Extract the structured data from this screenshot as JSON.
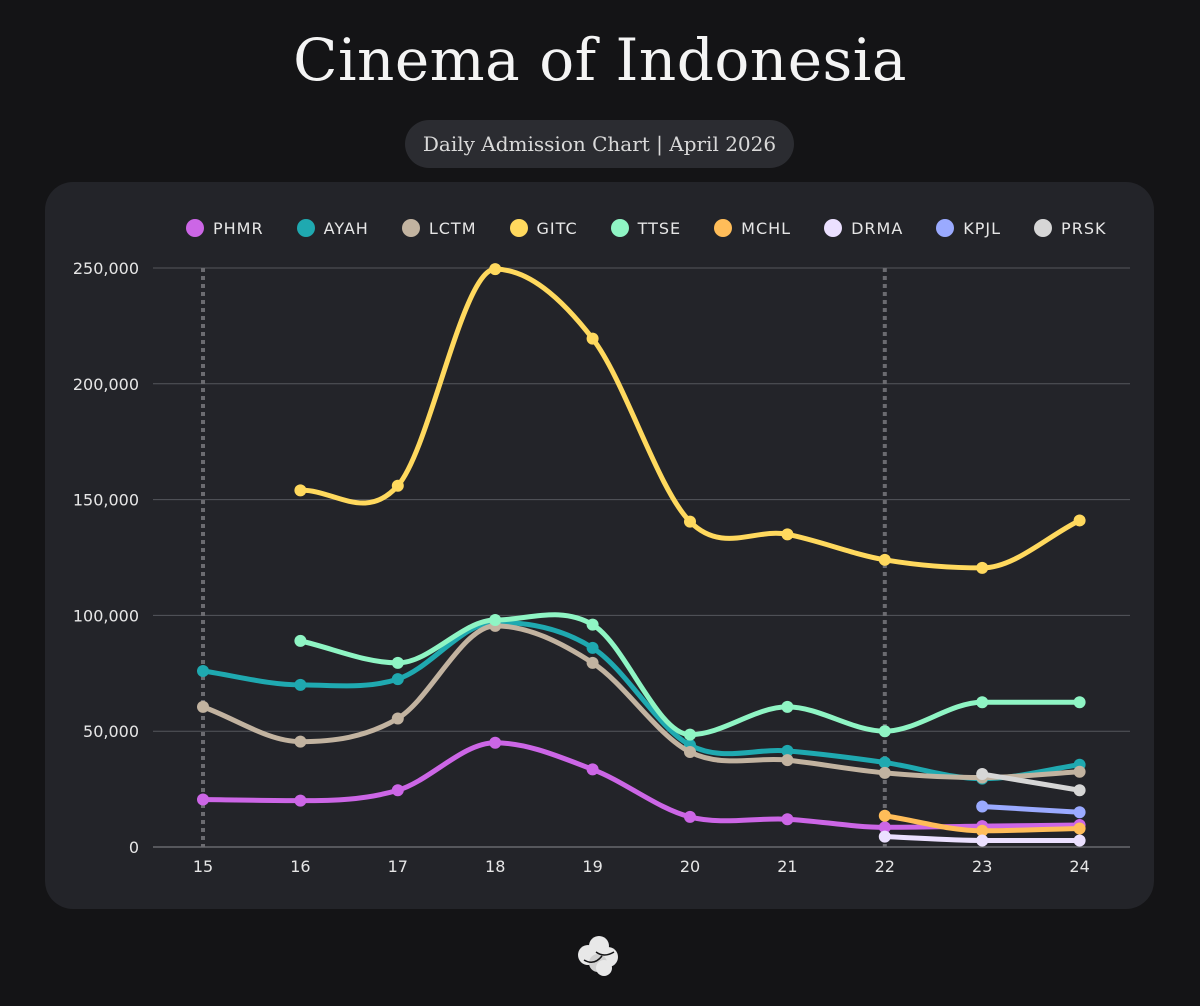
{
  "title": "Cinema of Indonesia",
  "subtitle": "Daily Admission Chart | April 2026",
  "chart_data": {
    "type": "line",
    "title": "Cinema of Indonesia",
    "subtitle": "Daily Admission Chart | April 2026",
    "xlabel": "",
    "ylabel": "",
    "x": [
      15,
      16,
      17,
      18,
      19,
      20,
      21,
      22,
      23,
      24
    ],
    "xlim": [
      15,
      24
    ],
    "ylim": [
      0,
      250000
    ],
    "y_ticks": [
      0,
      50000,
      100000,
      150000,
      200000,
      250000
    ],
    "y_tick_labels": [
      "0",
      "50,000",
      "100,000",
      "150,000",
      "200,000",
      "250,000"
    ],
    "grid": true,
    "legend_position": "top",
    "marked_days": [
      15,
      22
    ],
    "series": [
      {
        "name": "PHMR",
        "color": "#cc66e6",
        "values": [
          20500,
          20000,
          24500,
          45000,
          33500,
          13000,
          12000,
          8500,
          9000,
          9500
        ]
      },
      {
        "name": "AYAH",
        "color": "#1fa9b0",
        "values": [
          76000,
          70000,
          72500,
          97000,
          86000,
          44000,
          41500,
          36500,
          29500,
          35500
        ]
      },
      {
        "name": "LCTM",
        "color": "#c2b3a0",
        "values": [
          60500,
          45500,
          55500,
          95500,
          79500,
          41000,
          37500,
          32000,
          30000,
          32500
        ]
      },
      {
        "name": "GITC",
        "color": "#ffd95e",
        "values": [
          null,
          154000,
          156000,
          249500,
          219500,
          140500,
          135000,
          124000,
          120500,
          141000
        ]
      },
      {
        "name": "TTSE",
        "color": "#8ff5c4",
        "values": [
          null,
          89000,
          79500,
          98000,
          96000,
          48500,
          60500,
          50000,
          62500,
          62500
        ]
      },
      {
        "name": "MCHL",
        "color": "#ffbd59",
        "values": [
          null,
          null,
          null,
          null,
          null,
          null,
          null,
          13500,
          7000,
          8000
        ]
      },
      {
        "name": "DRMA",
        "color": "#ebe0ff",
        "values": [
          null,
          null,
          null,
          null,
          null,
          null,
          null,
          4500,
          2800,
          2800
        ]
      },
      {
        "name": "KPJL",
        "color": "#9aaaff",
        "values": [
          null,
          null,
          null,
          null,
          null,
          null,
          null,
          null,
          17500,
          15000
        ]
      },
      {
        "name": "PRSK",
        "color": "#d6d6d6",
        "values": [
          null,
          null,
          null,
          null,
          null,
          null,
          null,
          null,
          31500,
          24500
        ]
      }
    ]
  }
}
